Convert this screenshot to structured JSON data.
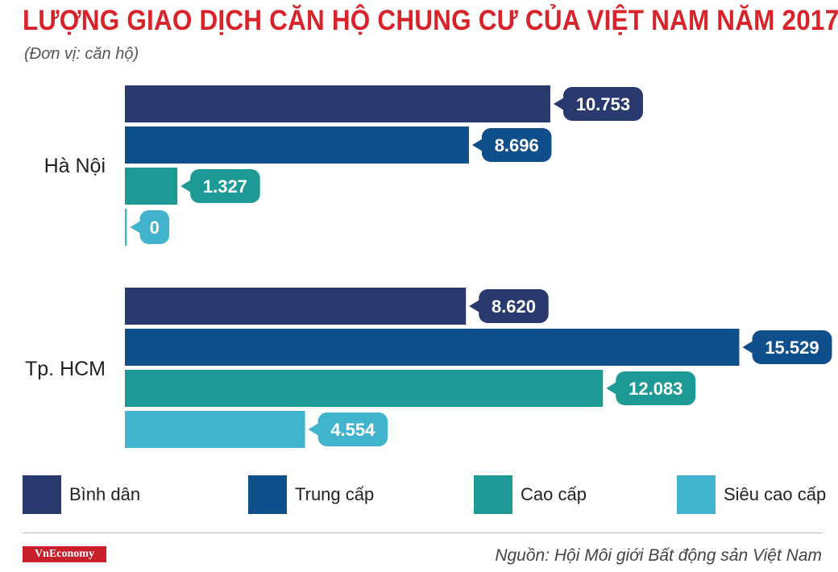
{
  "title": "LƯỢNG GIAO DỊCH CĂN HỘ CHUNG CƯ CỦA VIỆT NAM NĂM 2017",
  "subtitle": "(Đơn vị: căn hộ)",
  "source": "Nguồn: Hội Môi giới Bất động sản Việt Nam",
  "logo_text": "VnEconomy",
  "colors": {
    "title": "#d8232a",
    "logo_bg": "#c8202a"
  },
  "chart_data": {
    "type": "bar",
    "orientation": "horizontal",
    "title": "LƯỢNG GIAO DỊCH CĂN HỘ CHUNG CƯ CỦA VIỆT NAM NĂM 2017",
    "subtitle": "(Đơn vị: căn hộ)",
    "categories": [
      "Hà Nội",
      "Tp. HCM"
    ],
    "series": [
      {
        "name": "Bình dân",
        "color": "#2b3a6e",
        "values": [
          10753,
          8620
        ],
        "labels": [
          "10.753",
          "8.620"
        ]
      },
      {
        "name": "Trung cấp",
        "color": "#0f4f8c",
        "values": [
          8696,
          15529
        ],
        "labels": [
          "8.696",
          "15.529"
        ]
      },
      {
        "name": "Cao cấp",
        "color": "#1d9a96",
        "values": [
          1327,
          12083
        ],
        "labels": [
          "1.327",
          "12.083"
        ]
      },
      {
        "name": "Siêu cao cấp",
        "color": "#41b3cc",
        "values": [
          0,
          4554
        ],
        "labels": [
          "0",
          "4.554"
        ]
      }
    ],
    "xlim": [
      0,
      16500
    ],
    "grid": false,
    "legend_position": "bottom"
  }
}
